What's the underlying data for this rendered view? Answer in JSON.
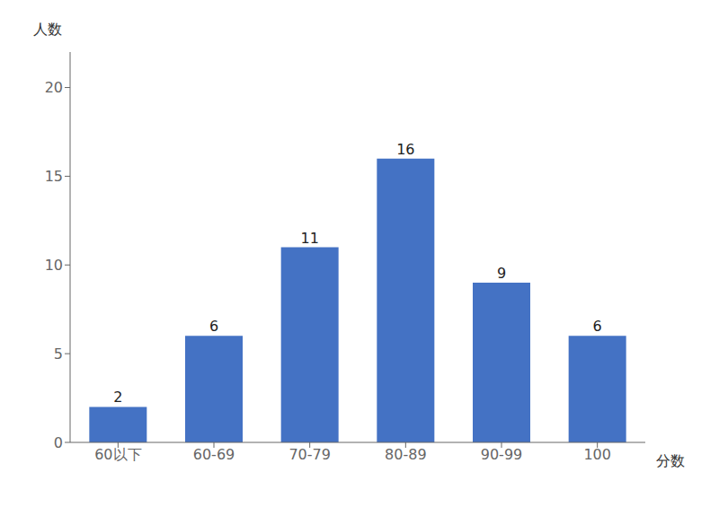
{
  "chart_data": {
    "type": "bar",
    "categories": [
      "60以下",
      "60-69",
      "70-79",
      "80-89",
      "90-99",
      "100"
    ],
    "values": [
      2,
      6,
      11,
      16,
      9,
      6
    ],
    "color": "#4472c4",
    "ylim": [
      0,
      22
    ],
    "yticks": [
      0,
      5,
      10,
      15,
      20
    ],
    "ylabel": "人数",
    "xlabel": "分数",
    "data_labels": true,
    "grid": false
  }
}
